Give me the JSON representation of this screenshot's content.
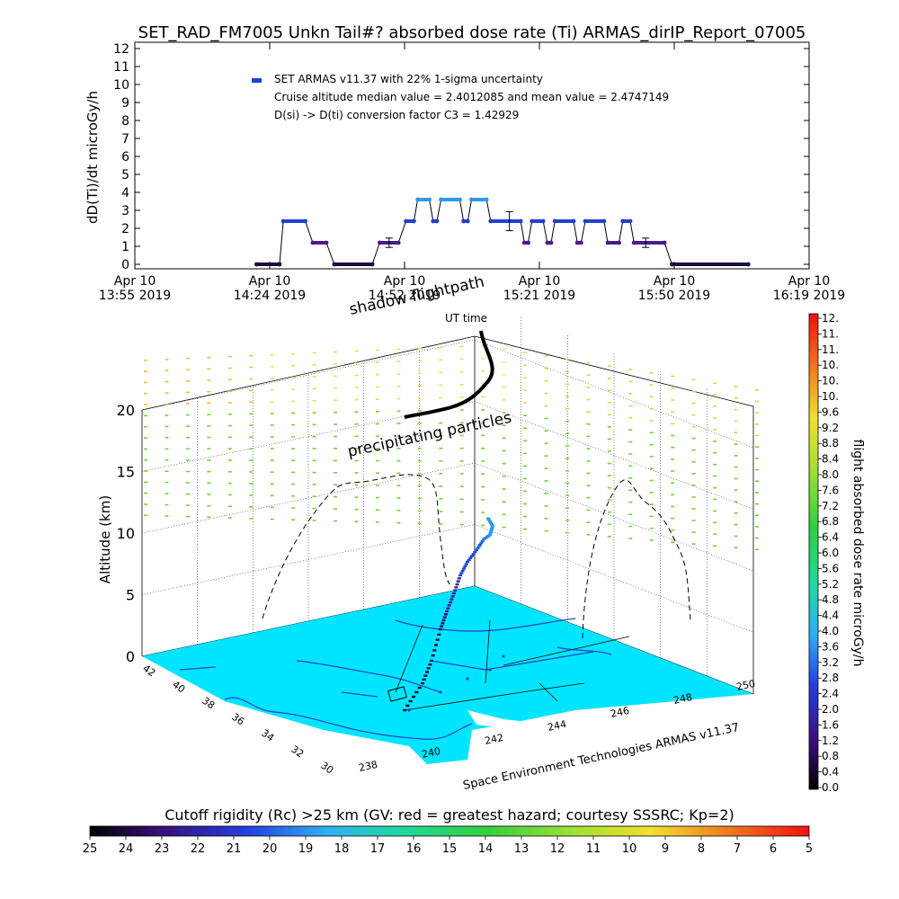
{
  "title": "SET_RAD_FM7005  Unkn Tail#? absorbed dose rate (Ti) ARMAS_dirIP_Report_07005",
  "top_plot": {
    "ylabel": "dD(Ti)/dt microGy/h",
    "legend_marker_color": "#1f3fd8",
    "legend_lines": [
      "SET ARMAS v11.37 with 22% 1-sigma uncertainty",
      "Cruise altitude median value = 2.4012085 and mean value = 2.4747149",
      "D(si) -> D(ti) conversion factor C3 = 1.42929"
    ],
    "x_ticks": [
      {
        "l1": "Apr 10",
        "l2": "13:55 2019"
      },
      {
        "l1": "Apr 10",
        "l2": "14:24 2019"
      },
      {
        "l1": "Apr 10",
        "l2": "14:52 2019"
      },
      {
        "l1": "Apr 10",
        "l2": "15:21 2019"
      },
      {
        "l1": "Apr 10",
        "l2": "15:50 2019"
      },
      {
        "l1": "Apr 10",
        "l2": "16:19 2019"
      }
    ]
  },
  "chart_data": [
    {
      "type": "scatter",
      "title": "SET_RAD_FM7005  Unkn Tail#? absorbed dose rate (Ti) ARMAS_dirIP_Report_07005",
      "xlabel": "",
      "ylabel": "dD(Ti)/dt microGy/h",
      "x_range_minutes": [
        0,
        144
      ],
      "x_tick_minutes": [
        0,
        28.8,
        57.6,
        86.4,
        115.2,
        144
      ],
      "y_ticks": [
        0,
        1,
        2,
        3,
        4,
        5,
        6,
        7,
        8,
        9,
        10,
        11,
        12
      ],
      "ylim": [
        0,
        12
      ],
      "series": [
        {
          "name": "SET ARMAS v11.37 with 22% 1-sigma uncertainty",
          "segments": [
            {
              "x0": 26.0,
              "x1": 30.9,
              "y": 0.0
            },
            {
              "x0": 31.7,
              "x1": 36.4,
              "y": 2.4
            },
            {
              "x0": 38.0,
              "x1": 40.9,
              "y": 1.2
            },
            {
              "x0": 42.6,
              "x1": 50.7,
              "y": 0.0
            },
            {
              "x0": 52.3,
              "x1": 56.3,
              "y": 1.2
            },
            {
              "x0": 57.9,
              "x1": 59.6,
              "y": 2.4
            },
            {
              "x0": 60.4,
              "x1": 62.9,
              "y": 3.6
            },
            {
              "x0": 63.7,
              "x1": 64.5,
              "y": 2.4
            },
            {
              "x0": 65.4,
              "x1": 69.4,
              "y": 3.6
            },
            {
              "x0": 70.2,
              "x1": 71.1,
              "y": 2.4
            },
            {
              "x0": 71.9,
              "x1": 75.1,
              "y": 3.6
            },
            {
              "x0": 76.0,
              "x1": 82.4,
              "y": 2.4
            },
            {
              "x0": 83.2,
              "x1": 84.0,
              "y": 1.2
            },
            {
              "x0": 84.8,
              "x1": 87.2,
              "y": 2.4
            },
            {
              "x0": 88.1,
              "x1": 88.9,
              "y": 1.2
            },
            {
              "x0": 89.7,
              "x1": 93.7,
              "y": 2.4
            },
            {
              "x0": 94.5,
              "x1": 95.3,
              "y": 1.2
            },
            {
              "x0": 96.2,
              "x1": 100.2,
              "y": 2.4
            },
            {
              "x0": 101.0,
              "x1": 103.4,
              "y": 1.2
            },
            {
              "x0": 104.2,
              "x1": 105.8,
              "y": 2.4
            },
            {
              "x0": 106.6,
              "x1": 113.1,
              "y": 1.2
            },
            {
              "x0": 114.7,
              "x1": 131.0,
              "y": 0.0
            }
          ],
          "error_bars": [
            {
              "x": 54.3,
              "y": 1.2,
              "err": 0.26
            },
            {
              "x": 80.0,
              "y": 2.4,
              "err": 0.53
            },
            {
              "x": 109.1,
              "y": 1.2,
              "err": 0.26
            }
          ]
        }
      ]
    },
    {
      "type": "3d-trajectory",
      "ylabel": "Altitude (km)",
      "z_ticks": [
        0,
        5,
        10,
        15,
        20
      ],
      "lat_ticks": [
        "42",
        "40",
        "38",
        "36",
        "34",
        "32",
        "30"
      ],
      "lon_ticks": [
        "238",
        "240",
        "242",
        "244",
        "246",
        "248",
        "250"
      ],
      "annotations": [
        "shadow flightpath",
        "UT time",
        "precipitating particles"
      ],
      "credit": "Space Environment Technologies ARMAS v11.37",
      "colorbar": {
        "label": "flight absorbed dose rate microGy/h",
        "ticks": [
          "0.0",
          "0.4",
          "0.8",
          "1.2",
          "1.6",
          "2.0",
          "2.4",
          "2.8",
          "3.2",
          "3.6",
          "4.0",
          "4.4",
          "4.8",
          "5.2",
          "5.6",
          "6.0",
          "6.4",
          "6.8",
          "7.2",
          "7.6",
          "8.0",
          "8.4",
          "8.8",
          "9.2",
          "9.6",
          "10.",
          "10.",
          "10.",
          "11.",
          "11.",
          "12."
        ]
      }
    },
    {
      "type": "colorbar",
      "title": "Cutoff rigidity (Rc) >25 km (GV: red = greatest hazard; courtesy SSSRC; Kp=2)",
      "ticks": [
        "25",
        "24",
        "23",
        "22",
        "21",
        "20",
        "19",
        "18",
        "17",
        "16",
        "15",
        "14",
        "13",
        "12",
        "11",
        "10",
        "9",
        "8",
        "7",
        "6",
        "5"
      ]
    }
  ],
  "colors": {
    "ocean": "#00e5ff",
    "land": "#7ee6f5",
    "coast": "#2a3cc8",
    "dose_low": "#1f1f6a",
    "dose_mid": "#1f60d8",
    "dose_high": "#2ab0f0",
    "precip_green": "#7ad030",
    "precip_yellow": "#e8e040"
  }
}
